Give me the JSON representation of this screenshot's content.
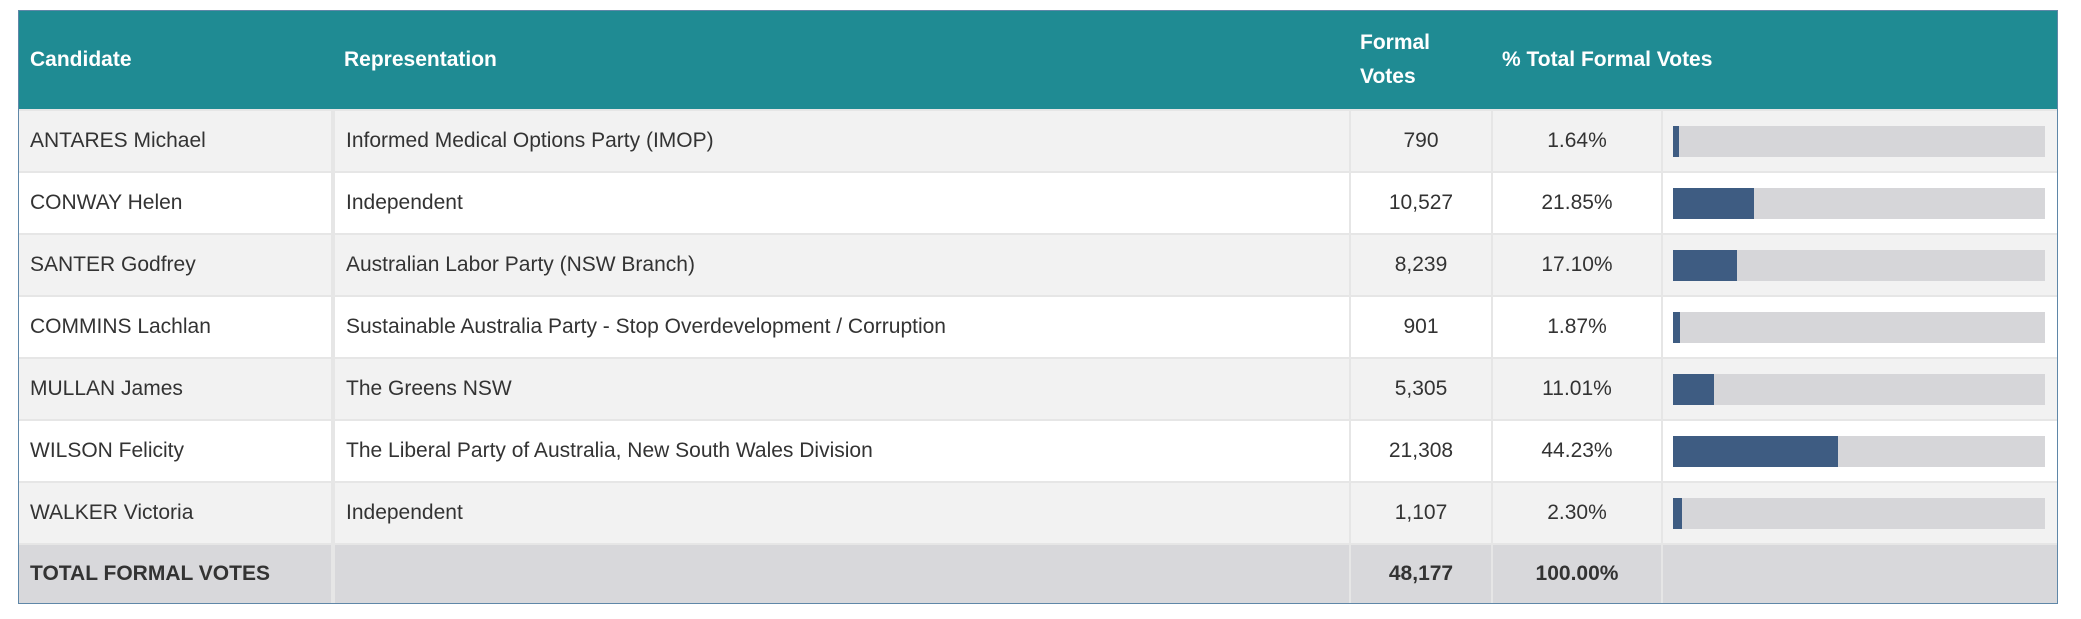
{
  "table": {
    "columns": [
      "Candidate",
      "Representation",
      "Formal Votes",
      "% Total Formal Votes"
    ],
    "rows": [
      {
        "candidate": "ANTARES Michael",
        "representation": "Informed Medical Options Party (IMOP)",
        "votes": "790",
        "percent": 1.64,
        "percent_label": "1.64%"
      },
      {
        "candidate": "CONWAY Helen",
        "representation": "Independent",
        "votes": "10,527",
        "percent": 21.85,
        "percent_label": "21.85%"
      },
      {
        "candidate": "SANTER Godfrey",
        "representation": "Australian Labor Party (NSW Branch)",
        "votes": "8,239",
        "percent": 17.1,
        "percent_label": "17.10%"
      },
      {
        "candidate": "COMMINS Lachlan",
        "representation": "Sustainable Australia Party - Stop Overdevelopment / Corruption",
        "votes": "901",
        "percent": 1.87,
        "percent_label": "1.87%"
      },
      {
        "candidate": "MULLAN James",
        "representation": "The Greens NSW",
        "votes": "5,305",
        "percent": 11.01,
        "percent_label": "11.01%"
      },
      {
        "candidate": "WILSON Felicity",
        "representation": "The Liberal Party of Australia, New South Wales Division",
        "votes": "21,308",
        "percent": 44.23,
        "percent_label": "44.23%"
      },
      {
        "candidate": "WALKER Victoria",
        "representation": "Independent",
        "votes": "1,107",
        "percent": 2.3,
        "percent_label": "2.30%"
      }
    ],
    "total": {
      "label": "TOTAL FORMAL VOTES",
      "votes": "48,177",
      "percent": 100.0,
      "percent_label": "100.00%"
    }
  }
}
